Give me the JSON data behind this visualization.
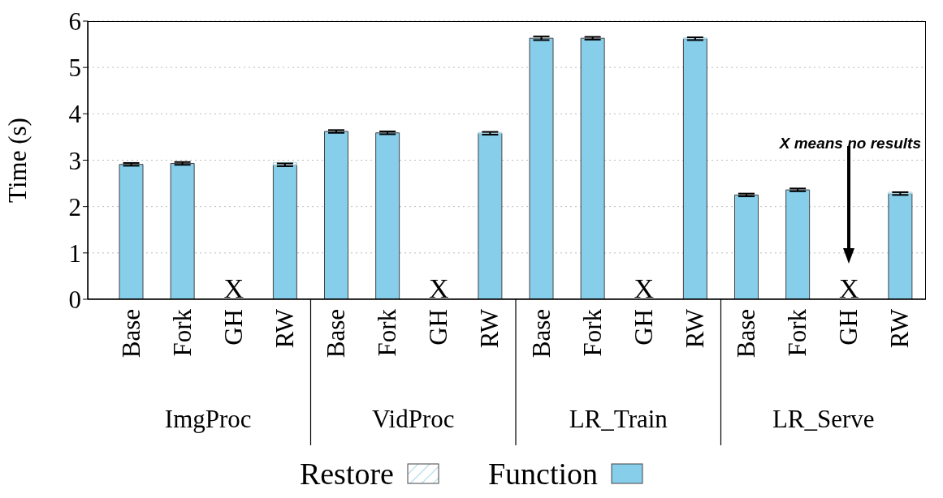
{
  "chart_data": {
    "type": "bar",
    "stacked": true,
    "ylabel": "Time (s)",
    "categories": [
      "Base",
      "Fork",
      "GH",
      "RW",
      "Base",
      "Fork",
      "GH",
      "RW",
      "Base",
      "Fork",
      "GH",
      "RW",
      "Base",
      "Fork",
      "GH",
      "RW"
    ],
    "series": [
      {
        "name": "Function",
        "color": "#87ceeb",
        "values": [
          2.91,
          2.93,
          null,
          2.9,
          3.62,
          3.59,
          null,
          3.58,
          5.63,
          5.63,
          null,
          5.62,
          2.25,
          2.36,
          null,
          2.28
        ],
        "errors": [
          0.03,
          0.03,
          null,
          0.03,
          0.03,
          0.03,
          null,
          0.03,
          0.04,
          0.03,
          null,
          0.03,
          0.03,
          0.03,
          null,
          0.03
        ]
      },
      {
        "name": "Restore",
        "color": "#add8e6",
        "values": [
          0,
          0,
          null,
          0.05,
          0,
          0,
          null,
          0.02,
          0,
          0,
          null,
          0.02,
          0,
          0,
          null,
          0.03
        ]
      }
    ],
    "ylim": [
      0,
      6
    ],
    "yticks": [
      0,
      1,
      2,
      3,
      4,
      5,
      6
    ],
    "grid": "y",
    "legend": "bottom",
    "annotations": [
      "ImgProc",
      "VidProc",
      "LR_Train",
      "LR_Serve",
      "X",
      "X",
      "X",
      "X",
      "X means no results"
    ]
  }
}
